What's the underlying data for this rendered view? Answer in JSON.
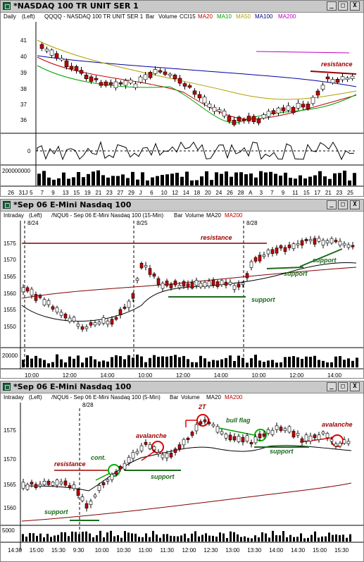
{
  "panels": [
    {
      "title": "*NASDAQ 100 TR UNIT SER 1",
      "info": {
        "period": "Daily",
        "scale": "(Left)",
        "symbol": "QQQQ - NASDAQ 100 TR UNIT SER 1",
        "bar": "Bar",
        "volume": "Volume",
        "indicator": "CCI15",
        "mas": [
          {
            "label": "MA20",
            "color": "#c00000"
          },
          {
            "label": "MA10",
            "color": "#00a000"
          },
          {
            "label": "MA50",
            "color": "#b0a000"
          },
          {
            "label": "MA100",
            "color": "#000080"
          },
          {
            "label": "MA200",
            "color": "#c000c0"
          }
        ]
      },
      "yticks": [
        "41",
        "40",
        "39",
        "38",
        "37",
        "36"
      ],
      "cci_tick": "0",
      "vol_tick": "200000000",
      "xticks": [
        "26",
        "31J",
        "5",
        "7",
        "9",
        "13",
        "15",
        "19",
        "21",
        "23",
        "27",
        "29",
        "J",
        "6",
        "10",
        "12",
        "14",
        "18",
        "20",
        "24",
        "26",
        "28",
        "A",
        "3",
        "7",
        "9",
        "11",
        "15",
        "17",
        "21",
        "23",
        "25"
      ],
      "annotations": [
        {
          "text": "resistance",
          "color": "#a00000"
        }
      ]
    },
    {
      "title": "*Sep 06  E-Mini Nasdaq 100",
      "info": {
        "period": "Intraday",
        "scale": "(Left)",
        "symbol": "/NQU6 - Sep 06  E-Mini Nasdaq 100 (15-Min)",
        "bar": "Bar",
        "volume": "Volume",
        "mas": [
          {
            "label": "MA20",
            "color": "#000000"
          },
          {
            "label": "MA200",
            "color": "#c00000"
          }
        ]
      },
      "dates": [
        "8/24",
        "8/25",
        "8/28"
      ],
      "yticks": [
        "1575",
        "1570",
        "1565",
        "1560",
        "1555",
        "1550"
      ],
      "vol_tick": "20000",
      "xticks": [
        "10:00",
        "12:00",
        "14:00",
        "10:00",
        "12:00",
        "14:00",
        "10:00",
        "12:00",
        "14:00"
      ],
      "annotations": [
        {
          "text": "resistance",
          "color": "#a00000"
        },
        {
          "text": "support",
          "color": "#1a6b1a"
        },
        {
          "text": "support",
          "color": "#1a6b1a"
        },
        {
          "text": "support",
          "color": "#1a6b1a"
        }
      ]
    },
    {
      "title": "*Sep 06  E-Mini Nasdaq 100",
      "info": {
        "period": "Intraday",
        "scale": "(Left)",
        "symbol": "/NQU6 - Sep 06  E-Mini Nasdaq 100 (5-Min)",
        "bar": "Bar",
        "volume": "Volume",
        "mas": [
          {
            "label": "MA20",
            "color": "#000000"
          },
          {
            "label": "MA200",
            "color": "#c00000"
          }
        ]
      },
      "dates": [
        "8/28"
      ],
      "yticks": [
        "1575",
        "1570",
        "1565",
        "1560"
      ],
      "vol_tick": "5000",
      "xticks": [
        "14:30",
        "15:00",
        "15:30",
        "9:30",
        "10:00",
        "10:30",
        "11:00",
        "11:30",
        "12:00",
        "12:30",
        "13:00",
        "13:30",
        "14:00",
        "14:30",
        "15:00",
        "15:30"
      ],
      "annotations": [
        {
          "text": "resistance",
          "color": "#a00000"
        },
        {
          "text": "support",
          "color": "#1a6b1a"
        },
        {
          "text": "cont.",
          "color": "#1a6b1a"
        },
        {
          "text": "avalanche",
          "color": "#a00000"
        },
        {
          "text": "support",
          "color": "#1a6b1a"
        },
        {
          "text": "2T",
          "color": "#a00000"
        },
        {
          "text": "bull flag",
          "color": "#1a6b1a"
        },
        {
          "text": "support",
          "color": "#1a6b1a"
        },
        {
          "text": "avalanche",
          "color": "#a00000"
        }
      ]
    }
  ],
  "window_buttons": {
    "minimize": "_",
    "maximize": "□",
    "close": "X"
  }
}
